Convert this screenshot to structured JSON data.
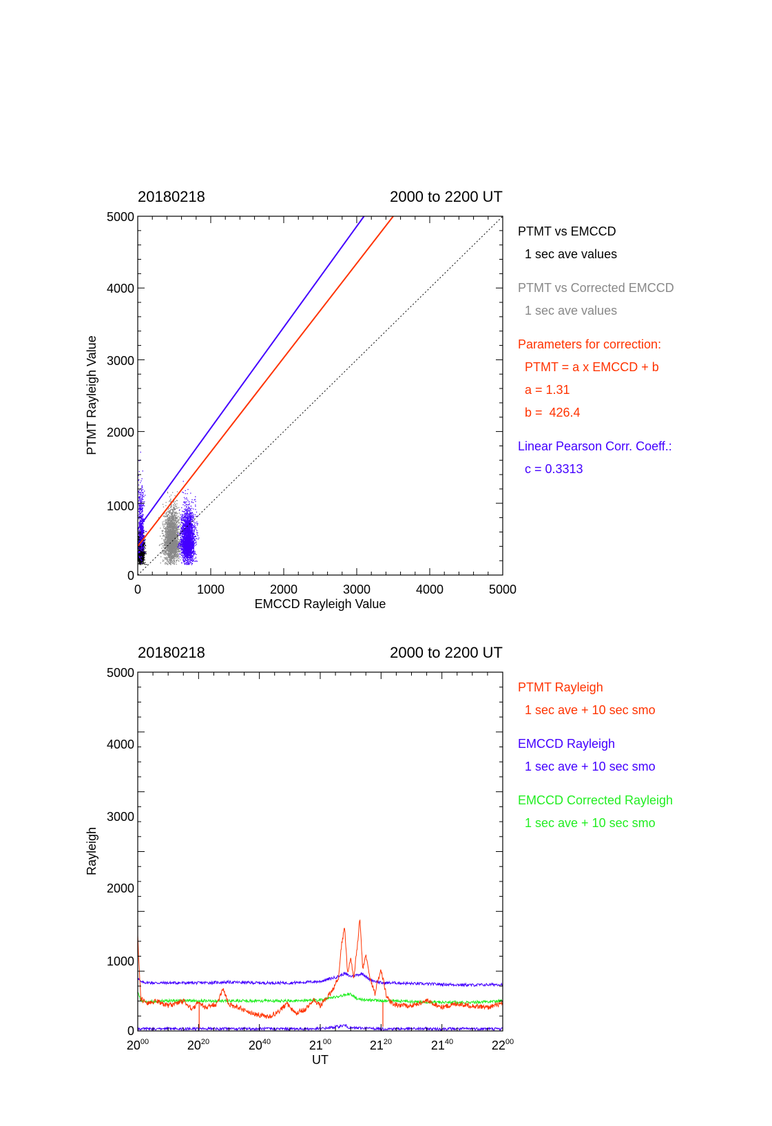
{
  "colors": {
    "black": "#000000",
    "gray": "#888888",
    "red": "#ff3300",
    "blue": "#4400ff",
    "green": "#22ee22"
  },
  "chart_data": [
    {
      "type": "scatter",
      "date": "20180218",
      "time_range": "2000 to 2200 UT",
      "xlabel": "EMCCD Rayleigh Value",
      "ylabel": "PTMT Rayleigh Value",
      "xlim": [
        0,
        5000
      ],
      "ylim": [
        0,
        5000
      ],
      "xticks": [
        "0",
        "1000",
        "2000",
        "3000",
        "4000",
        "5000"
      ],
      "yticks": [
        "0",
        "1000",
        "2000",
        "3000",
        "4000",
        "5000"
      ],
      "grid": false,
      "legend": [
        {
          "text": "PTMT vs EMCCD",
          "color": "#000000"
        },
        {
          "text": "1 sec ave values",
          "color": "#000000",
          "indent": true
        },
        {
          "text": "PTMT vs Corrected EMCCD",
          "color": "#888888"
        },
        {
          "text": "1 sec ave values",
          "color": "#888888",
          "indent": true
        },
        {
          "text": "Parameters for correction:",
          "color": "#ff3300"
        },
        {
          "text": "PTMT = a x EMCCD + b",
          "color": "#ff3300",
          "indent": true
        },
        {
          "text": "a = 1.31",
          "color": "#ff3300",
          "indent": true
        },
        {
          "text": "b =  426.4",
          "color": "#ff3300",
          "indent": true
        },
        {
          "text": "Linear Pearson Corr. Coeff.:",
          "color": "#4400ff"
        },
        {
          "text": "c = 0.3313",
          "color": "#4400ff",
          "indent": true
        }
      ],
      "lines": [
        {
          "name": "blue fit",
          "color": "#4400ff",
          "style": "solid",
          "x": [
            0,
            3100
          ],
          "y": [
            640,
            5000
          ]
        },
        {
          "name": "red fit",
          "color": "#ff3300",
          "style": "solid",
          "x": [
            0,
            3500
          ],
          "y": [
            400,
            5000
          ]
        },
        {
          "name": "1:1",
          "color": "#000000",
          "style": "dotted",
          "x": [
            0,
            5000
          ],
          "y": [
            0,
            5000
          ]
        }
      ],
      "clusters": [
        {
          "color": "#000000",
          "x_center": 40,
          "x_spread": 40,
          "y_center": 330,
          "y_spread": 120,
          "n": 1400
        },
        {
          "color": "#888888",
          "x_center": 460,
          "x_spread": 90,
          "y_center": 480,
          "y_spread": 220,
          "n": 2600
        },
        {
          "color": "#4400ff",
          "x_center": 680,
          "x_spread": 80,
          "y_center": 480,
          "y_spread": 220,
          "n": 2600
        },
        {
          "color": "#4400ff",
          "x_center": 40,
          "x_spread": 40,
          "y_center": 700,
          "y_spread": 320,
          "n": 500
        }
      ]
    },
    {
      "type": "line",
      "date": "20180218",
      "time_range": "2000 to 2200 UT",
      "xlabel": "UT",
      "ylabel": "Rayleigh",
      "xlim_minutes": [
        0,
        120
      ],
      "ylim": [
        0,
        5000
      ],
      "xticks": [
        {
          "hour": "20",
          "min": "00"
        },
        {
          "hour": "20",
          "min": "20"
        },
        {
          "hour": "20",
          "min": "40"
        },
        {
          "hour": "21",
          "min": "00"
        },
        {
          "hour": "21",
          "min": "20"
        },
        {
          "hour": "21",
          "min": "40"
        },
        {
          "hour": "22",
          "min": "00"
        }
      ],
      "yticks": [
        "0",
        "1000",
        "2000",
        "3000",
        "4000",
        "5000"
      ],
      "grid": false,
      "legend": [
        {
          "text": "PTMT Rayleigh",
          "color": "#ff3300"
        },
        {
          "text": "1 sec ave + 10 sec smo",
          "color": "#ff3300",
          "indent": true
        },
        {
          "text": "EMCCD Rayleigh",
          "color": "#4400ff"
        },
        {
          "text": "1 sec ave + 10 sec smo",
          "color": "#4400ff",
          "indent": true
        },
        {
          "text": "EMCCD Corrected Rayleigh",
          "color": "#22ee22"
        },
        {
          "text": "1 sec ave + 10 sec smo",
          "color": "#22ee22",
          "indent": true
        }
      ],
      "series": [
        {
          "color": "#4400ff",
          "t": [
            0,
            1,
            5,
            10,
            20,
            30,
            40,
            50,
            60,
            66,
            68,
            70,
            72,
            74,
            76,
            80,
            85,
            90,
            100,
            110,
            120
          ],
          "y": [
            750,
            680,
            670,
            670,
            670,
            680,
            670,
            670,
            690,
            760,
            800,
            760,
            780,
            800,
            720,
            670,
            670,
            660,
            650,
            640,
            650
          ]
        },
        {
          "color": "#4400ff",
          "t": [
            0,
            30,
            60,
            66,
            68,
            70,
            74,
            80,
            120
          ],
          "y": [
            30,
            30,
            30,
            60,
            80,
            40,
            40,
            30,
            30
          ]
        },
        {
          "color": "#22ee22",
          "t": [
            0,
            1,
            5,
            10,
            20,
            30,
            40,
            50,
            60,
            66,
            70,
            72,
            76,
            80,
            85,
            90,
            100,
            110,
            120
          ],
          "y": [
            560,
            420,
            410,
            420,
            420,
            420,
            420,
            420,
            430,
            480,
            520,
            450,
            430,
            420,
            420,
            410,
            400,
            400,
            420
          ]
        },
        {
          "color": "#ff3300",
          "t": [
            0,
            0.5,
            1,
            3,
            6,
            10,
            15,
            18,
            20,
            22,
            26,
            28,
            30,
            33,
            36,
            40,
            43,
            46,
            49,
            52,
            55,
            58,
            60,
            62,
            64,
            66,
            67,
            68,
            69,
            70,
            71,
            72,
            73,
            74,
            75,
            76,
            77,
            78,
            79,
            80,
            82,
            84,
            86,
            90,
            95,
            100,
            105,
            110,
            115,
            120
          ],
          "y": [
            1300,
            850,
            450,
            380,
            420,
            350,
            420,
            300,
            400,
            330,
            380,
            580,
            370,
            330,
            270,
            220,
            200,
            260,
            380,
            250,
            300,
            430,
            350,
            450,
            560,
            750,
            1200,
            1450,
            800,
            1000,
            750,
            1100,
            1560,
            850,
            1050,
            800,
            650,
            520,
            700,
            850,
            450,
            380,
            360,
            350,
            420,
            330,
            380,
            350,
            330,
            380
          ]
        }
      ],
      "spikes": [
        {
          "t": 20.2,
          "y": 40
        },
        {
          "t": 80.6,
          "y": 60
        }
      ]
    }
  ]
}
